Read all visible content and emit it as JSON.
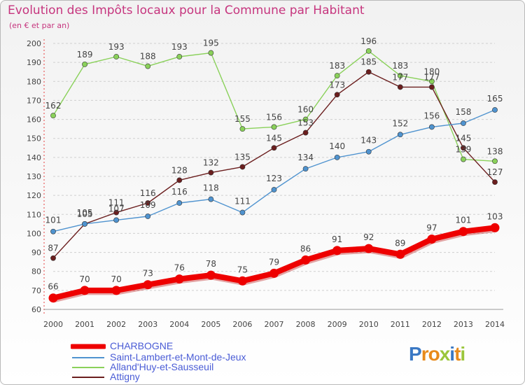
{
  "title": "Evolution des Impôts locaux pour la Commune par Habitant",
  "subtitle": "(en € et par an)",
  "logo": {
    "letters": [
      "P",
      "r",
      "o",
      "x",
      "i",
      "t",
      "i"
    ],
    "colors": [
      "#3a78c4",
      "#e88a1b",
      "#e88a1b",
      "#9bc63b",
      "#3a78c4",
      "#e88a1b",
      "#9bc63b"
    ]
  },
  "chart_data": {
    "type": "line",
    "title": "Evolution des Impôts locaux pour la Commune par Habitant",
    "subtitle": "(en € et par an)",
    "xlabel": "",
    "ylabel": "",
    "x": [
      2000,
      2001,
      2002,
      2003,
      2004,
      2005,
      2006,
      2007,
      2008,
      2009,
      2010,
      2011,
      2012,
      2013,
      2014
    ],
    "ylim": [
      60,
      200
    ],
    "yticks": [
      60,
      70,
      80,
      90,
      100,
      110,
      120,
      130,
      140,
      150,
      160,
      170,
      180,
      190,
      200
    ],
    "grid": "horizontal dashed",
    "legend_position": "bottom-left",
    "series": [
      {
        "name": "CHARBOGNE",
        "color": "#ee0000",
        "emphasis": true,
        "values": [
          66,
          70,
          70,
          73,
          76,
          78,
          75,
          79,
          86,
          91,
          92,
          89,
          97,
          101,
          103
        ]
      },
      {
        "name": "Saint-Lambert-et-Mont-de-Jeux",
        "color": "#4f93cf",
        "values": [
          101,
          105,
          107,
          109,
          116,
          118,
          111,
          123,
          134,
          140,
          143,
          152,
          156,
          158,
          165
        ]
      },
      {
        "name": "Alland'Huy-et-Sausseuil",
        "color": "#8ad15a",
        "values": [
          162,
          189,
          193,
          188,
          193,
          195,
          155,
          156,
          160,
          183,
          196,
          183,
          180,
          139,
          138
        ]
      },
      {
        "name": "Attigny",
        "color": "#6b1e1e",
        "values": [
          87,
          105,
          111,
          116,
          128,
          132,
          135,
          145,
          153,
          173,
          185,
          177,
          177,
          145,
          127
        ]
      }
    ]
  }
}
